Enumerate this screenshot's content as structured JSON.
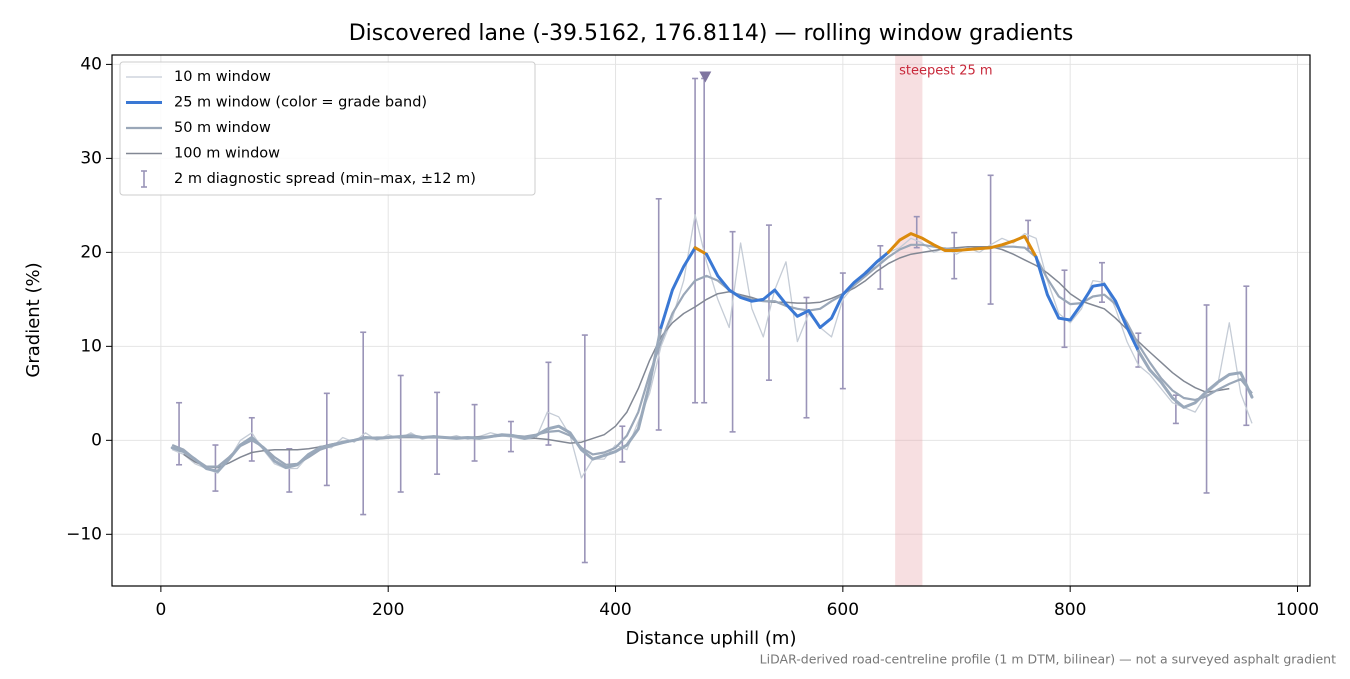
{
  "chart_data": {
    "type": "line",
    "title": "Discovered lane (-39.5162, 176.8114) — rolling window gradients",
    "x_label": "Distance uphill (m)",
    "y_label": "Gradient (%)",
    "footnote": "LiDAR-derived road-centreline profile (1 m DTM, bilinear) — not a surveyed asphalt gradient",
    "xlim": [
      -43,
      1011
    ],
    "ylim": [
      -15.5,
      41
    ],
    "xticks": [
      0,
      200,
      400,
      600,
      800,
      1000
    ],
    "yticks": [
      {
        "value": -10,
        "label": "−10"
      },
      0,
      10,
      20,
      30,
      40
    ],
    "grid": true,
    "legend": "upper left",
    "x": [
      10,
      20,
      30,
      40,
      50,
      60,
      70,
      80,
      90,
      100,
      110,
      120,
      130,
      140,
      150,
      160,
      170,
      180,
      190,
      200,
      210,
      220,
      230,
      240,
      250,
      260,
      270,
      280,
      290,
      300,
      310,
      320,
      330,
      340,
      350,
      360,
      370,
      380,
      390,
      400,
      410,
      420,
      430,
      440,
      450,
      460,
      470,
      480,
      490,
      500,
      510,
      520,
      530,
      540,
      550,
      560,
      570,
      580,
      590,
      600,
      610,
      620,
      630,
      640,
      650,
      660,
      670,
      680,
      690,
      700,
      710,
      720,
      730,
      740,
      750,
      760,
      770,
      780,
      790,
      800,
      810,
      820,
      830,
      840,
      850,
      860,
      870,
      880,
      890,
      900,
      910,
      920,
      930,
      940,
      950,
      960
    ],
    "series": [
      {
        "name": "10 m window",
        "color": "#c5ccd6",
        "values": [
          -1,
          -1.5,
          -2.5,
          -3,
          -3.5,
          -2,
          0,
          0.8,
          -1,
          -2.5,
          -3,
          -3,
          -1.6,
          -0.6,
          -0.8,
          0.3,
          -0.2,
          0.8,
          0,
          0.6,
          0.2,
          0.8,
          0.1,
          0.5,
          0.2,
          0.5,
          0.1,
          0.4,
          0.8,
          0.5,
          0.3,
          0.1,
          0.2,
          3,
          2.5,
          0.5,
          -4,
          -2,
          -2,
          -0.5,
          -1,
          2,
          5,
          10,
          13,
          17,
          24,
          19,
          15,
          12,
          21,
          14,
          11,
          16,
          19,
          10.5,
          13.5,
          12,
          11,
          15,
          16.5,
          18,
          18.5,
          20,
          20.5,
          21.5,
          21,
          20,
          20.5,
          19.8,
          20.5,
          20,
          20.8,
          21.5,
          21,
          22,
          21.5,
          17,
          13.5,
          12.5,
          14,
          17,
          16.8,
          14,
          10.5,
          8,
          7,
          5.5,
          4,
          3.5,
          3,
          5,
          6,
          12.5,
          5,
          1.8
        ]
      },
      {
        "name": "25 m window (color = grade band)",
        "color": "#3a78d4",
        "band_breaks": [
          10,
          20
        ],
        "band_colors": [
          "#9aa9bb",
          "#3a78d4",
          "#db8a0c"
        ],
        "values": [
          -0.8,
          -1.2,
          -2,
          -3,
          -3.3,
          -2,
          -0.5,
          0.3,
          -0.8,
          -2.2,
          -2.9,
          -2.6,
          -1.5,
          -0.8,
          -0.5,
          -0.2,
          0,
          0.3,
          0.2,
          0.3,
          0.4,
          0.5,
          0.3,
          0.4,
          0.3,
          0.2,
          0.3,
          0.2,
          0.4,
          0.6,
          0.5,
          0.2,
          0.5,
          1.2,
          1.5,
          0.8,
          -1,
          -2,
          -1.6,
          -1.2,
          -0.5,
          1.2,
          6,
          12,
          16,
          18.5,
          20.5,
          19.8,
          17.5,
          16,
          15.2,
          14.8,
          15,
          16,
          14.5,
          13.2,
          13.8,
          12,
          13,
          15.5,
          16.8,
          17.8,
          19,
          20,
          21.3,
          22,
          21.5,
          20.8,
          20.2,
          20.2,
          20.3,
          20.4,
          20.5,
          20.8,
          21.2,
          21.7,
          19.5,
          15.5,
          13,
          12.8,
          14.5,
          16.4,
          16.6,
          14.8,
          12,
          9.5,
          7.5,
          6.2,
          4.5,
          3.5,
          4,
          5.2,
          6.2,
          7,
          7.2,
          4.6
        ]
      },
      {
        "name": "50 m window",
        "color": "#9aa7b8",
        "values": [
          -0.5,
          -1,
          -2,
          -2.8,
          -2.8,
          -1.8,
          -0.6,
          0,
          -0.7,
          -1.8,
          -2.6,
          -2.5,
          -1.8,
          -1,
          -0.6,
          -0.3,
          0,
          0.2,
          0.3,
          0.3,
          0.4,
          0.4,
          0.3,
          0.3,
          0.3,
          0.3,
          0.3,
          0.3,
          0.4,
          0.5,
          0.5,
          0.4,
          0.6,
          0.9,
          1,
          0.5,
          -0.8,
          -1.5,
          -1.3,
          -0.8,
          0.5,
          3,
          7,
          10.5,
          13.5,
          15.5,
          17,
          17.5,
          17,
          16,
          15.3,
          15,
          14.8,
          14.8,
          14.3,
          14,
          13.8,
          14,
          14.8,
          15.5,
          16.5,
          17.5,
          18.5,
          19.5,
          20.3,
          20.8,
          20.8,
          20.6,
          20.4,
          20.3,
          20.3,
          20.4,
          20.5,
          20.6,
          20.6,
          20.5,
          19.5,
          17.2,
          15.3,
          14.5,
          14.6,
          15.3,
          15.5,
          14.5,
          12.5,
          10.2,
          8.3,
          6.6,
          5.3,
          4.5,
          4.3,
          4.7,
          5.4,
          6,
          6.5,
          5
        ]
      },
      {
        "name": "100 m window",
        "color": "#828894",
        "values": [
          null,
          -1.5,
          -2.3,
          -2.8,
          -2.9,
          -2.4,
          -1.8,
          -1.3,
          -1.1,
          -1,
          -1,
          -1,
          -0.9,
          -0.7,
          -0.4,
          -0.2,
          0,
          0.2,
          0.3,
          0.3,
          0.3,
          0.3,
          0.3,
          0.3,
          0.3,
          0.3,
          0.3,
          0.4,
          0.4,
          0.5,
          0.5,
          0.3,
          0.2,
          0.1,
          -0.1,
          -0.3,
          -0.2,
          0.2,
          0.6,
          1.5,
          3,
          5.5,
          8.5,
          11,
          12.5,
          13.5,
          14.2,
          15,
          15.6,
          15.8,
          15.5,
          15.2,
          14.8,
          14.7,
          14.7,
          14.6,
          14.6,
          14.7,
          15.1,
          15.6,
          16.2,
          17,
          18,
          18.8,
          19.4,
          19.8,
          20,
          20.2,
          20.4,
          20.5,
          20.6,
          20.6,
          20.6,
          20.3,
          19.8,
          19.2,
          18.6,
          17.8,
          16.8,
          15.6,
          14.8,
          14.4,
          14,
          13,
          11.8,
          10.5,
          9.4,
          8.3,
          7.2,
          6.3,
          5.6,
          5.1,
          5.3,
          5.5,
          null,
          null
        ]
      }
    ],
    "errorbars": {
      "name": "2 m diagnostic spread (min–max, ±12 m)",
      "color": "#9a94b8",
      "x": [
        16,
        48,
        80,
        113,
        146,
        178,
        211,
        243,
        276,
        308,
        341,
        373,
        406,
        438,
        470,
        478,
        503,
        535,
        568,
        600,
        633,
        665,
        698,
        730,
        763,
        795,
        828,
        860,
        893,
        920,
        955
      ],
      "low": [
        -2.6,
        -5.4,
        -2.2,
        -5.5,
        -4.8,
        -7.9,
        -5.5,
        -3.6,
        -2.2,
        -1.2,
        -0.5,
        -13,
        -2.3,
        1.1,
        4,
        4,
        0.9,
        6.4,
        2.4,
        5.5,
        16.1,
        20.5,
        17.2,
        14.5,
        20.4,
        9.9,
        14.7,
        7.8,
        1.8,
        -5.6,
        1.6
      ],
      "high": [
        4,
        -0.5,
        2.4,
        -0.9,
        5,
        11.5,
        6.9,
        5.1,
        3.8,
        2,
        8.3,
        11.2,
        1.5,
        25.7,
        38.5,
        38.5,
        22.2,
        22.9,
        15.2,
        17.8,
        20.7,
        23.8,
        22.1,
        28.2,
        23.4,
        18.1,
        18.9,
        11.4,
        4.8,
        14.4,
        16.4
      ]
    },
    "outlier_marker": {
      "x": 479,
      "y": 38.6,
      "color": "#7f75a0"
    },
    "highlight": {
      "x": [
        646,
        670
      ],
      "label": "steepest 25 m",
      "color": "#e8a3aa",
      "label_color": "#c8283a"
    }
  }
}
